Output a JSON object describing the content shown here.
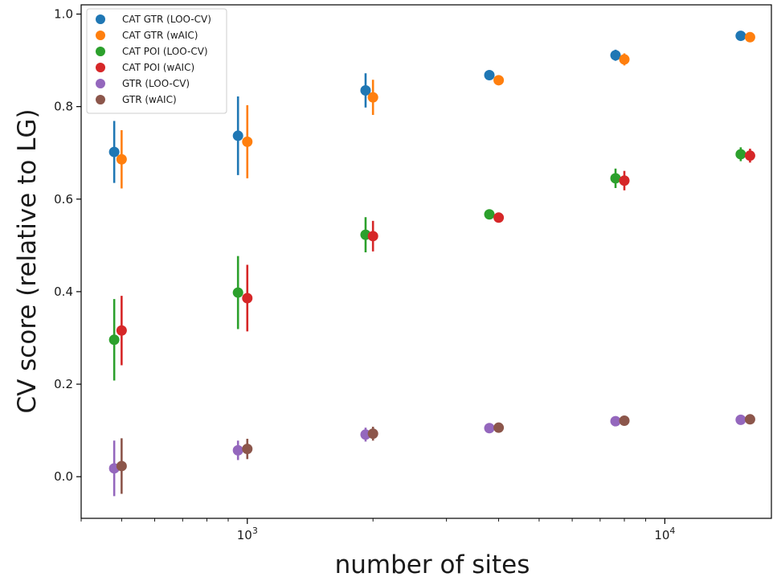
{
  "chart_data": {
    "type": "scatter",
    "title": "",
    "xlabel": "number of sites",
    "ylabel": "CV score (relative to LG)",
    "xscale": "log",
    "xlim": [
      400,
      18000
    ],
    "ylim": [
      -0.09,
      1.02
    ],
    "grid": false,
    "legend_position": "top-left",
    "x_tick_labels": [
      {
        "value": 1000,
        "base": "10",
        "exp": "3"
      },
      {
        "value": 10000,
        "base": "10",
        "exp": "4"
      }
    ],
    "y_ticks": [
      {
        "value": 0.0,
        "label": "0.0"
      },
      {
        "value": 0.2,
        "label": "0.2"
      },
      {
        "value": 0.4,
        "label": "0.4"
      },
      {
        "value": 0.6,
        "label": "0.6"
      },
      {
        "value": 0.8,
        "label": "0.8"
      },
      {
        "value": 1.0,
        "label": "1.0"
      }
    ],
    "series": [
      {
        "name": "CAT GTR (LOO-CV)",
        "color": "#1f77b4",
        "x": [
          480,
          950,
          1920,
          3800,
          7620,
          15200
        ],
        "y": [
          0.702,
          0.737,
          0.835,
          0.868,
          0.911,
          0.953
        ],
        "err": [
          0.067,
          0.085,
          0.037,
          0.006,
          0.012,
          0.004
        ]
      },
      {
        "name": "CAT GTR (wAIC)",
        "color": "#ff7f0e",
        "x": [
          500,
          1000,
          2000,
          4000,
          8000,
          16000
        ],
        "y": [
          0.686,
          0.724,
          0.82,
          0.857,
          0.902,
          0.95
        ],
        "err": [
          0.063,
          0.079,
          0.038,
          0.006,
          0.013,
          0.004
        ]
      },
      {
        "name": "CAT POI (LOO-CV)",
        "color": "#2ca02c",
        "x": [
          480,
          950,
          1920,
          3800,
          7620,
          15200
        ],
        "y": [
          0.296,
          0.398,
          0.523,
          0.567,
          0.645,
          0.697
        ],
        "err": [
          0.088,
          0.079,
          0.038,
          0.006,
          0.021,
          0.015
        ]
      },
      {
        "name": "CAT POI (wAIC)",
        "color": "#d62728",
        "x": [
          500,
          1000,
          2000,
          4000,
          8000,
          16000
        ],
        "y": [
          0.316,
          0.386,
          0.52,
          0.56,
          0.64,
          0.694
        ],
        "err": [
          0.075,
          0.072,
          0.033,
          0.006,
          0.021,
          0.015
        ]
      },
      {
        "name": "GTR (LOO-CV)",
        "color": "#9467bd",
        "x": [
          480,
          950,
          1920,
          3800,
          7620,
          15200
        ],
        "y": [
          0.018,
          0.057,
          0.091,
          0.105,
          0.12,
          0.123
        ],
        "err": [
          0.06,
          0.021,
          0.015,
          0.004,
          0.004,
          0.003
        ]
      },
      {
        "name": "GTR (wAIC)",
        "color": "#8c564b",
        "x": [
          500,
          1000,
          2000,
          4000,
          8000,
          16000
        ],
        "y": [
          0.023,
          0.06,
          0.093,
          0.106,
          0.121,
          0.124
        ],
        "err": [
          0.06,
          0.022,
          0.015,
          0.004,
          0.004,
          0.003
        ]
      }
    ]
  }
}
